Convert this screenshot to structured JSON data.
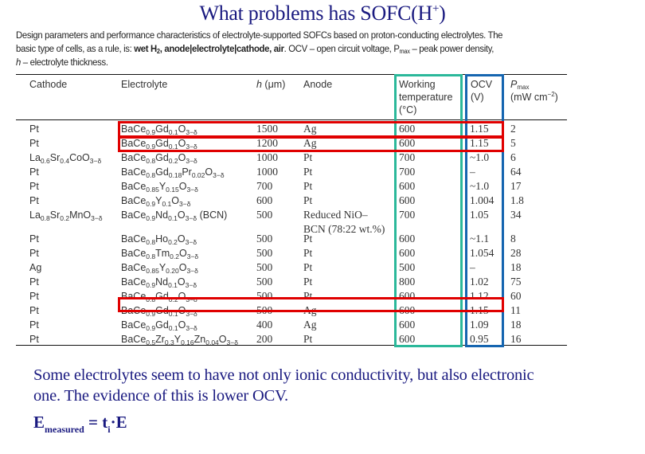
{
  "title": {
    "text": "What problems has SOFC(H",
    "sup": "+",
    "close": ")"
  },
  "caption": {
    "line1": "Design parameters and performance characteristics of electrolyte-supported SOFCs based on proton-conducting electrolytes. The",
    "line2_pre": "basic type of cells, as a rule, is: ",
    "line2_bold": "wet H",
    "line2_bold_sub": "2",
    "line2_bold2": ", anode|electrolyte|cathode, air",
    "line2_post": ". OCV – open circuit voltage, P",
    "line2_pmax_sub": "max",
    "line2_end": " – peak power density,",
    "line3_h": "h",
    "line3_rest": " – electrolyte thickness."
  },
  "table": {
    "headers": {
      "cathode": "Cathode",
      "electrolyte": "Electrolyte",
      "h_italic": "h",
      "h_unit": " (μm)",
      "anode": "Anode",
      "temp_line1": "Working",
      "temp_line2": "temperature",
      "temp_line3": "(°C)",
      "ocv_line1": "OCV",
      "ocv_line2": "(V)",
      "pmax_p": "P",
      "pmax_sub": "max",
      "pmax_unit_pre": "(mW cm",
      "pmax_unit_sup": "−2",
      "pmax_unit_post": ")"
    },
    "rows": [
      {
        "cathode": "Pt",
        "electrolyte": "BaCe0.9Gd0.1O3−δ",
        "h": "1500",
        "anode": "Ag",
        "temp": "600",
        "ocv": "1.15",
        "pmax": "2"
      },
      {
        "cathode": "Pt",
        "electrolyte": "BaCe0.9Gd0.1O3−δ",
        "h": "1200",
        "anode": "Ag",
        "temp": "600",
        "ocv": "1.15",
        "pmax": "5"
      },
      {
        "cathode": "La0.6Sr0.4CoO3−δ",
        "electrolyte": "BaCe0.8Gd0.2O3−δ",
        "h": "1000",
        "anode": "Pt",
        "temp": "700",
        "ocv": "~1.0",
        "pmax": "6"
      },
      {
        "cathode": "Pt",
        "electrolyte": "BaCe0.8Gd0.18Pr0.02O3−δ",
        "h": "1000",
        "anode": "Pt",
        "temp": "700",
        "ocv": "–",
        "pmax": "64"
      },
      {
        "cathode": "Pt",
        "electrolyte": "BaCe0.85Y0.15O3−δ",
        "h": "700",
        "anode": "Pt",
        "temp": "600",
        "ocv": "~1.0",
        "pmax": "17"
      },
      {
        "cathode": "Pt",
        "electrolyte": "BaCe0.9Y0.1O3−δ",
        "h": "600",
        "anode": "Pt",
        "temp": "600",
        "ocv": "1.004",
        "pmax": "1.8"
      },
      {
        "cathode": "La0.8Sr0.2MnO3−δ",
        "electrolyte": "BaCe0.9Nd0.1O3−δ (BCN)",
        "h": "500",
        "anode": "Reduced NiO–",
        "anode_line2": "BCN (78:22 wt.%)",
        "temp": "700",
        "ocv": "1.05",
        "pmax": "34"
      },
      {
        "cathode": "Pt",
        "electrolyte": "BaCe0.8Ho0.2O3−δ",
        "h": "500",
        "anode": "Pt",
        "temp": "600",
        "ocv": "~1.1",
        "pmax": "8"
      },
      {
        "cathode": "Pt",
        "electrolyte": "BaCe0.8Tm0.2O3−δ",
        "h": "500",
        "anode": "Pt",
        "temp": "600",
        "ocv": "1.054",
        "pmax": "28"
      },
      {
        "cathode": "Ag",
        "electrolyte": "BaCe0.85Y0.20O3−δ",
        "h": "500",
        "anode": "Pt",
        "temp": "500",
        "ocv": "–",
        "pmax": "18"
      },
      {
        "cathode": "Pt",
        "electrolyte": "BaCe0.9Nd0.1O3−δ",
        "h": "500",
        "anode": "Pt",
        "temp": "800",
        "ocv": "1.02",
        "pmax": "75"
      },
      {
        "cathode": "Pt",
        "electrolyte": "BaCe0.8Gd0.2O3−δ",
        "h": "500",
        "anode": "Pt",
        "temp": "600",
        "ocv": "1.12",
        "pmax": "60"
      },
      {
        "cathode": "Pt",
        "electrolyte": "BaCe0.9Gd0.1O3−δ",
        "h": "500",
        "anode": "Ag",
        "temp": "600",
        "ocv": "1.15",
        "pmax": "11"
      },
      {
        "cathode": "Pt",
        "electrolyte": "BaCe0.9Gd0.1O3−δ",
        "h": "400",
        "anode": "Ag",
        "temp": "600",
        "ocv": "1.09",
        "pmax": "18"
      },
      {
        "cathode": "Pt",
        "electrolyte": "BaCe0.5Zr0.3Y0.16Zn0.04O3−δ",
        "h": "200",
        "anode": "Pt",
        "temp": "600",
        "ocv": "0.95",
        "pmax": "16"
      }
    ],
    "highlight_colors": {
      "red": "#e00000",
      "teal": "#2bb89a",
      "blue": "#1565b0"
    }
  },
  "bottom": {
    "paragraph_line1": "Some electrolytes seem to have not only ionic conductivity, but also electronic",
    "paragraph_line2": "one. The evidence of this is lower OCV.",
    "formula_E": "E",
    "formula_sub": "measured",
    "formula_eq": " = t",
    "formula_ti_sub": "i",
    "formula_end": "·E"
  }
}
